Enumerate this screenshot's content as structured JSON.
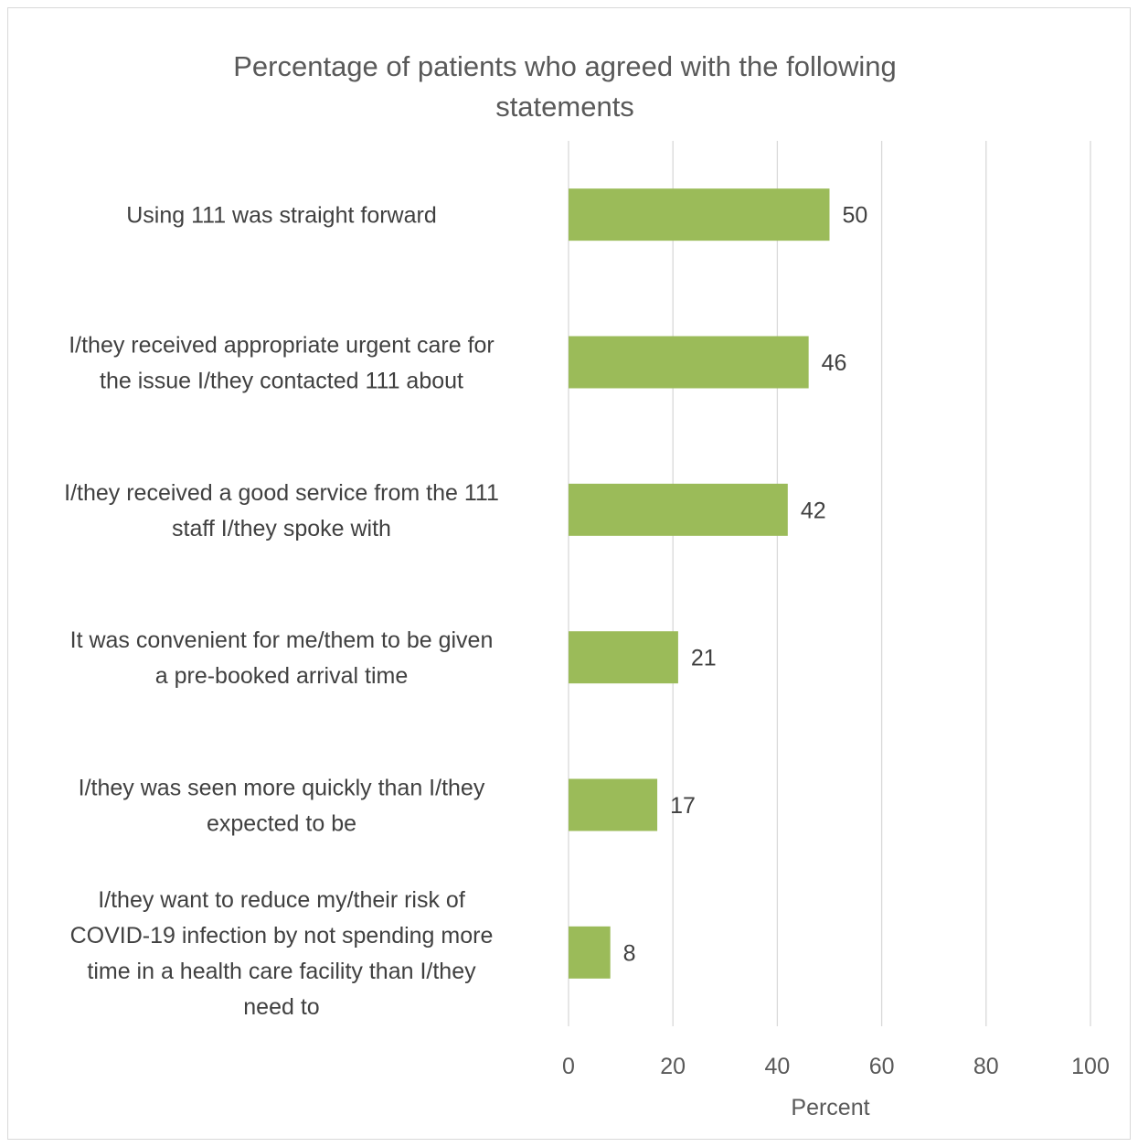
{
  "chart_data": {
    "type": "bar",
    "orientation": "horizontal",
    "title": "Percentage of patients who agreed with the following statements",
    "title_lines": [
      "Percentage of patients who agreed with the following",
      "statements"
    ],
    "xlabel": "Percent",
    "ylabel": "",
    "xlim": [
      0,
      100
    ],
    "x_ticks": [
      "0",
      "20",
      "40",
      "60",
      "80",
      "100"
    ],
    "grid": true,
    "legend": "none",
    "bar_color": "#9BBB59",
    "categories": [
      {
        "label": "Using 111 was straight forward",
        "lines": [
          "Using 111 was straight forward"
        ],
        "value": 50,
        "value_label": "50"
      },
      {
        "label": "I/they received appropriate urgent care for the issue I/they contacted 111 about",
        "lines": [
          "I/they received appropriate urgent care for",
          "the issue I/they contacted 111 about"
        ],
        "value": 46,
        "value_label": "46"
      },
      {
        "label": "I/they received a good service from the 111 staff I/they spoke with",
        "lines": [
          "I/they received a good service from the 111",
          "staff I/they spoke with"
        ],
        "value": 42,
        "value_label": "42"
      },
      {
        "label": "It was convenient for me/them to be given a pre-booked arrival time",
        "lines": [
          "It was convenient for me/them to be given",
          "a pre-booked arrival time"
        ],
        "value": 21,
        "value_label": "21"
      },
      {
        "label": "I/they was seen more quickly than I/they expected to be",
        "lines": [
          "I/they was seen more quickly than I/they",
          "expected to be"
        ],
        "value": 17,
        "value_label": "17"
      },
      {
        "label": "I/they want to reduce my/their risk of COVID-19 infection by not spending more time in a health care facility than I/they need to",
        "lines": [
          "I/they want to reduce my/their risk of",
          "COVID-19 infection by not spending more",
          "time in a health care facility than I/they",
          "need to"
        ],
        "value": 8,
        "value_label": "8"
      }
    ]
  }
}
